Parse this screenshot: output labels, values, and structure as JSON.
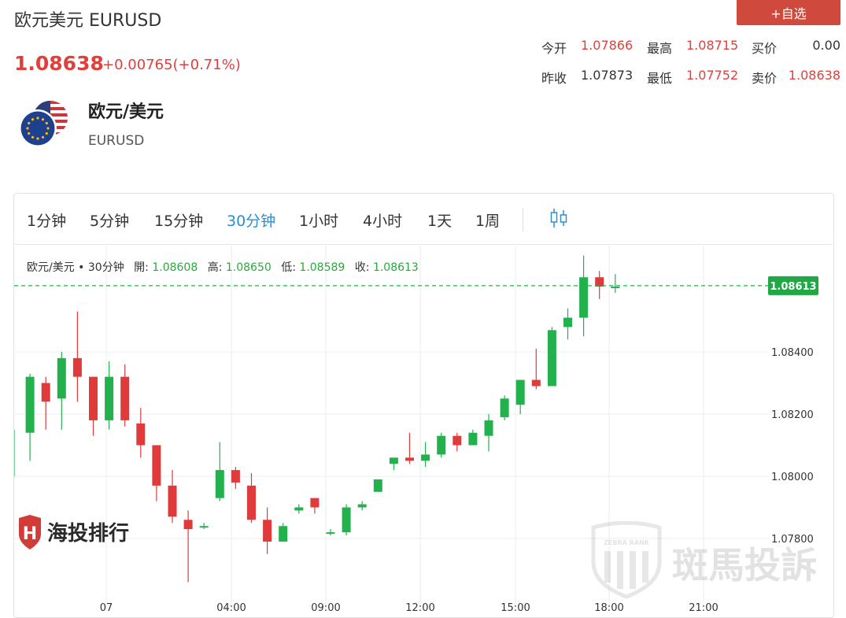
{
  "header": {
    "title": "欧元美元 EURUSD",
    "price": "1.08638",
    "change": "+0.00765(+0.71%)",
    "add_button": "+自选"
  },
  "quote": {
    "open_label": "今开",
    "open": "1.07866",
    "high_label": "最高",
    "high": "1.08715",
    "bid_label": "买价",
    "bid": "0.00",
    "prev_close_label": "昨收",
    "prev_close": "1.07873",
    "low_label": "最低",
    "low": "1.07752",
    "ask_label": "卖价",
    "ask": "1.08638"
  },
  "pair": {
    "name": "欧元/美元",
    "code": "EURUSD"
  },
  "timeframes": [
    "1分钟",
    "5分钟",
    "15分钟",
    "30分钟",
    "1小时",
    "4小时",
    "1天",
    "1周"
  ],
  "active_timeframe": "30分钟",
  "ohlc_bar": {
    "symbol": "欧元/美元",
    "period": "30分钟",
    "open_label": "開:",
    "open": "1.08608",
    "high_label": "高:",
    "high": "1.08650",
    "low_label": "低:",
    "low": "1.08589",
    "close_label": "收:",
    "close": "1.08613"
  },
  "watermarks": {
    "left_text": "海投排行",
    "right_text": "斑馬投訴",
    "right_badge": "ZEBRA RANK"
  },
  "colors": {
    "up": "#22b14c",
    "down": "#e03a3a",
    "accent_red": "#e0403b",
    "active_tab": "#2a8fd0"
  },
  "chart_data": {
    "type": "candlestick",
    "current_price_label": "1.08613",
    "y_ticks": [
      "1.08400",
      "1.08200",
      "1.08000",
      "1.07800"
    ],
    "x_ticks": [
      "07",
      "04:00",
      "09:00",
      "12:00",
      "15:00",
      "18:00",
      "21:00"
    ],
    "ylim": [
      1.0765,
      1.0874
    ],
    "candles": [
      {
        "o": 1.0815,
        "h": 1.0815,
        "l": 1.08,
        "c": 1.0815
      },
      {
        "o": 1.0814,
        "h": 1.0833,
        "l": 1.0805,
        "c": 1.0832
      },
      {
        "o": 1.083,
        "h": 1.0832,
        "l": 1.0815,
        "c": 1.0824
      },
      {
        "o": 1.0825,
        "h": 1.084,
        "l": 1.0815,
        "c": 1.0838
      },
      {
        "o": 1.0838,
        "h": 1.0853,
        "l": 1.0824,
        "c": 1.0832
      },
      {
        "o": 1.0832,
        "h": 1.0832,
        "l": 1.0813,
        "c": 1.0818
      },
      {
        "o": 1.0818,
        "h": 1.0837,
        "l": 1.0815,
        "c": 1.0832
      },
      {
        "o": 1.0832,
        "h": 1.0836,
        "l": 1.0816,
        "c": 1.0818
      },
      {
        "o": 1.0817,
        "h": 1.0822,
        "l": 1.0806,
        "c": 1.081
      },
      {
        "o": 1.081,
        "h": 1.081,
        "l": 1.0792,
        "c": 1.0797
      },
      {
        "o": 1.0797,
        "h": 1.0802,
        "l": 1.0785,
        "c": 1.0787
      },
      {
        "o": 1.0786,
        "h": 1.0789,
        "l": 1.0766,
        "c": 1.0783
      },
      {
        "o": 1.0784,
        "h": 1.0785,
        "l": 1.0783,
        "c": 1.0784
      },
      {
        "o": 1.0793,
        "h": 1.0811,
        "l": 1.0792,
        "c": 1.0802
      },
      {
        "o": 1.0802,
        "h": 1.0803,
        "l": 1.0796,
        "c": 1.0798
      },
      {
        "o": 1.0797,
        "h": 1.0801,
        "l": 1.0785,
        "c": 1.0786
      },
      {
        "o": 1.0786,
        "h": 1.079,
        "l": 1.0775,
        "c": 1.0779
      },
      {
        "o": 1.0779,
        "h": 1.0785,
        "l": 1.0779,
        "c": 1.0784
      },
      {
        "o": 1.0789,
        "h": 1.0791,
        "l": 1.0788,
        "c": 1.079
      },
      {
        "o": 1.0793,
        "h": 1.0793,
        "l": 1.0788,
        "c": 1.079
      },
      {
        "o": 1.0782,
        "h": 1.0783,
        "l": 1.0781,
        "c": 1.0782
      },
      {
        "o": 1.0782,
        "h": 1.0791,
        "l": 1.0781,
        "c": 1.079
      },
      {
        "o": 1.079,
        "h": 1.0792,
        "l": 1.0789,
        "c": 1.0791
      },
      {
        "o": 1.0795,
        "h": 1.0799,
        "l": 1.0795,
        "c": 1.0799
      },
      {
        "o": 1.0804,
        "h": 1.0806,
        "l": 1.0802,
        "c": 1.0806
      },
      {
        "o": 1.0806,
        "h": 1.0814,
        "l": 1.0804,
        "c": 1.0805
      },
      {
        "o": 1.0805,
        "h": 1.0811,
        "l": 1.0803,
        "c": 1.0807
      },
      {
        "o": 1.0807,
        "h": 1.0814,
        "l": 1.0806,
        "c": 1.0813
      },
      {
        "o": 1.0813,
        "h": 1.0814,
        "l": 1.0808,
        "c": 1.081
      },
      {
        "o": 1.081,
        "h": 1.0815,
        "l": 1.081,
        "c": 1.0814
      },
      {
        "o": 1.0813,
        "h": 1.082,
        "l": 1.0808,
        "c": 1.0818
      },
      {
        "o": 1.0819,
        "h": 1.0826,
        "l": 1.0818,
        "c": 1.0825
      },
      {
        "o": 1.0823,
        "h": 1.0831,
        "l": 1.082,
        "c": 1.0831
      },
      {
        "o": 1.0831,
        "h": 1.0841,
        "l": 1.0828,
        "c": 1.0829
      },
      {
        "o": 1.0829,
        "h": 1.0848,
        "l": 1.0829,
        "c": 1.0847
      },
      {
        "o": 1.0848,
        "h": 1.0854,
        "l": 1.0844,
        "c": 1.0851
      },
      {
        "o": 1.0851,
        "h": 1.0871,
        "l": 1.0845,
        "c": 1.0864
      },
      {
        "o": 1.0864,
        "h": 1.0866,
        "l": 1.0857,
        "c": 1.0861
      },
      {
        "o": 1.0861,
        "h": 1.0865,
        "l": 1.0859,
        "c": 1.0861
      }
    ]
  }
}
